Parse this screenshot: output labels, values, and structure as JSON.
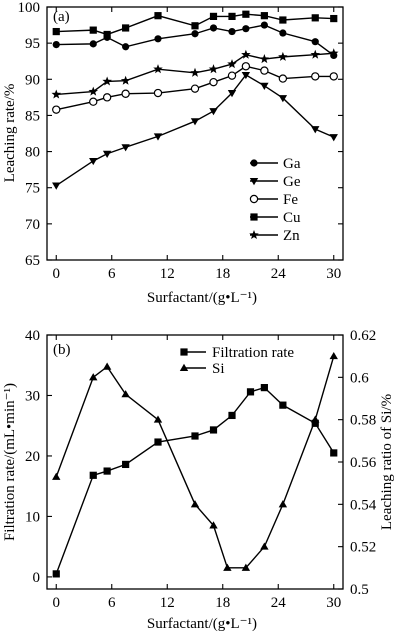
{
  "chart_data": [
    {
      "panel": "(a)",
      "type": "line",
      "xlabel": "Surfactant/(g•L⁻¹)",
      "ylabel": "Leaching rate/%",
      "xlim": [
        -1,
        31
      ],
      "ylim": [
        65,
        100
      ],
      "xticks": [
        0,
        6,
        12,
        18,
        24,
        30
      ],
      "yticks": [
        65,
        70,
        75,
        80,
        85,
        90,
        95,
        100
      ],
      "legend_position": "center-right",
      "x": [
        0,
        4,
        5.5,
        7.5,
        11,
        15,
        17,
        19,
        20.5,
        22.5,
        24.5,
        28,
        30
      ],
      "series": [
        {
          "name": "Ga",
          "marker": "circle-filled",
          "values": [
            94.8,
            94.9,
            95.8,
            94.5,
            95.6,
            96.3,
            97.1,
            96.6,
            97.0,
            97.5,
            96.4,
            95.2,
            93.3
          ]
        },
        {
          "name": "Ge",
          "marker": "triangle-down-filled",
          "values": [
            75.3,
            78.7,
            79.7,
            80.6,
            82.1,
            84.2,
            85.6,
            88.1,
            90.6,
            89.1,
            87.4,
            83.1,
            82.0
          ]
        },
        {
          "name": "Fe",
          "marker": "circle-open",
          "values": [
            85.8,
            86.9,
            87.5,
            88.0,
            88.1,
            88.7,
            89.6,
            90.5,
            91.8,
            91.2,
            90.1,
            90.4,
            90.4
          ]
        },
        {
          "name": "Cu",
          "marker": "square-filled",
          "values": [
            96.6,
            96.8,
            96.2,
            97.1,
            98.8,
            97.4,
            98.7,
            98.7,
            99.0,
            98.8,
            98.2,
            98.5,
            98.4
          ]
        },
        {
          "name": "Zn",
          "marker": "star-filled",
          "values": [
            87.9,
            88.3,
            89.7,
            89.8,
            91.4,
            90.9,
            91.4,
            92.1,
            93.4,
            92.8,
            93.1,
            93.4,
            93.6
          ]
        }
      ]
    },
    {
      "panel": "(b)",
      "type": "line",
      "xlabel": "Surfactant/(g•L⁻¹)",
      "ylabel": "Filtration rate/(mL•min⁻¹)",
      "ylabel_right": "Leaching ratio of Si/%",
      "xlim": [
        -1,
        31
      ],
      "ylim": [
        -2,
        40
      ],
      "ylim_right": [
        0.5,
        0.62
      ],
      "xticks": [
        0,
        6,
        12,
        18,
        24,
        30
      ],
      "yticks": [
        0,
        10,
        20,
        30,
        40
      ],
      "yticks_right": [
        0.5,
        0.52,
        0.54,
        0.56,
        0.58,
        0.6,
        0.62
      ],
      "legend_position": "top-center",
      "series": [
        {
          "name": "Filtration rate",
          "axis": "left",
          "marker": "square-filled",
          "x": [
            0,
            4,
            5.5,
            7.5,
            11,
            15,
            17,
            19,
            21,
            22.5,
            24.5,
            28,
            30
          ],
          "values": [
            0.5,
            16.8,
            17.5,
            18.6,
            22.3,
            23.3,
            24.3,
            26.7,
            30.6,
            31.3,
            28.4,
            25.4,
            20.5
          ]
        },
        {
          "name": "Si",
          "axis": "right",
          "marker": "triangle-up-filled",
          "x": [
            0,
            4,
            5.5,
            7.5,
            11,
            15,
            17,
            18.5,
            20.5,
            22.5,
            24.5,
            28,
            30
          ],
          "values": [
            0.553,
            0.6,
            0.605,
            0.592,
            0.58,
            0.54,
            0.53,
            0.51,
            0.51,
            0.52,
            0.54,
            0.58,
            0.61
          ]
        }
      ]
    }
  ]
}
